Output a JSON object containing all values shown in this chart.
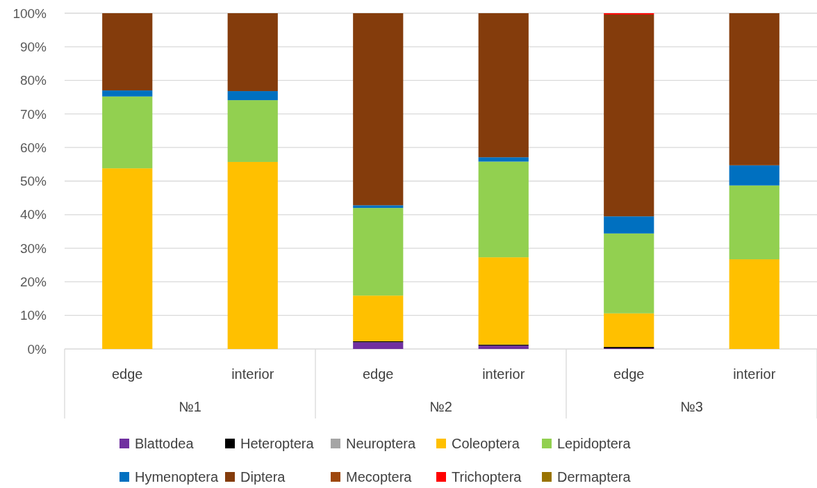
{
  "chart_data": {
    "type": "bar",
    "stacked": true,
    "categories": [
      "edge",
      "interior",
      "edge",
      "interior",
      "edge",
      "interior"
    ],
    "annotations": [
      "№1",
      "№2",
      "№3"
    ],
    "ylim": [
      0,
      100
    ],
    "yticks": [
      {
        "value": 0,
        "label": "0%"
      },
      {
        "value": 10,
        "label": "10%"
      },
      {
        "value": 20,
        "label": "20%"
      },
      {
        "value": 30,
        "label": "30%"
      },
      {
        "value": 40,
        "label": "40%"
      },
      {
        "value": 50,
        "label": "50%"
      },
      {
        "value": 60,
        "label": "60%"
      },
      {
        "value": 70,
        "label": "70%"
      },
      {
        "value": 80,
        "label": "80%"
      },
      {
        "value": 90,
        "label": "90%"
      },
      {
        "value": 100,
        "label": "100%"
      }
    ],
    "grid": "y",
    "legend": "bottom",
    "series": [
      {
        "name": "Blattodea",
        "color": "#7030a0",
        "values": [
          0,
          0,
          2.0,
          1.0,
          0.2,
          0
        ]
      },
      {
        "name": "Heteroptera",
        "color": "#000000",
        "values": [
          0,
          0,
          0.3,
          0.3,
          0.4,
          0
        ]
      },
      {
        "name": "Neuroptera",
        "color": "#a5a5a5",
        "values": [
          0,
          0,
          0,
          0,
          0,
          0
        ]
      },
      {
        "name": "Coleoptera",
        "color": "#ffc000",
        "values": [
          53.8,
          55.7,
          13.6,
          26.0,
          10.0,
          26.7
        ]
      },
      {
        "name": "Lepidoptera",
        "color": "#92d050",
        "values": [
          21.4,
          18.4,
          26.1,
          28.5,
          23.8,
          22.0
        ]
      },
      {
        "name": "Hymenoptera",
        "color": "#0070c0",
        "values": [
          1.8,
          2.7,
          0.8,
          1.3,
          5.1,
          6.0
        ]
      },
      {
        "name": "Diptera",
        "color": "#843c0c",
        "values": [
          23.0,
          23.2,
          57.2,
          42.9,
          60.1,
          45.3
        ]
      },
      {
        "name": "Mecoptera",
        "color": "#9e480e",
        "values": [
          0,
          0,
          0,
          0,
          0,
          0
        ]
      },
      {
        "name": "Trichoptera",
        "color": "#ff0000",
        "values": [
          0,
          0,
          0,
          0,
          0.4,
          0
        ]
      },
      {
        "name": "Dermaptera",
        "color": "#997300",
        "values": [
          0,
          0,
          0,
          0,
          0,
          0
        ]
      }
    ]
  }
}
